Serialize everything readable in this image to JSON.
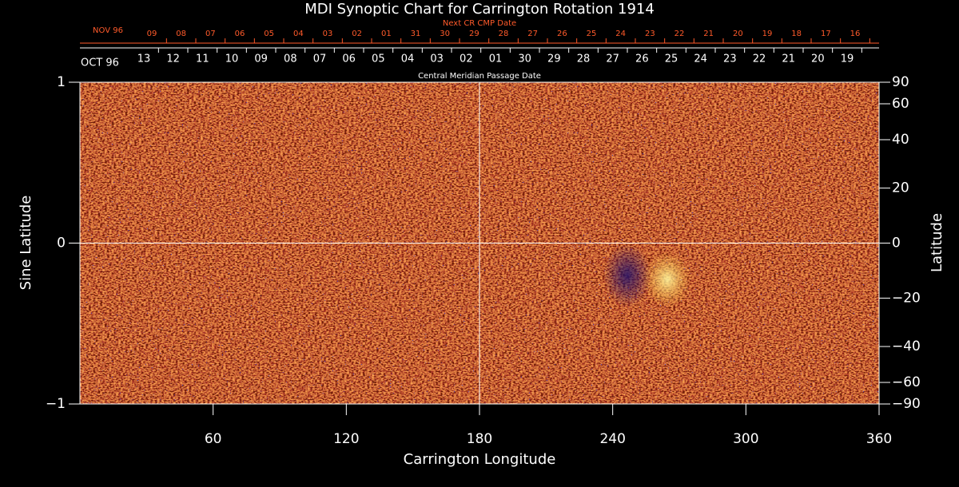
{
  "chart_data": {
    "type": "synoptic-map",
    "title": "MDI Synoptic Chart for Carrington Rotation 1914",
    "xlabel": "Carrington Longitude",
    "ylabel": "Sine Latitude",
    "y2label": "Latitude",
    "xlim": [
      0,
      360
    ],
    "xticks": [
      60,
      120,
      180,
      240,
      300,
      360
    ],
    "ylim": [
      -1,
      1
    ],
    "yticks": [
      {
        "value": -1,
        "label": "−1"
      },
      0,
      1
    ],
    "y2lim": [
      -90,
      90
    ],
    "y2scale": "sine",
    "y2ticks": [
      {
        "value": -90,
        "label": "−90"
      },
      {
        "value": -60,
        "label": "−60"
      },
      {
        "value": -40,
        "label": "−40"
      },
      {
        "value": -20,
        "label": "−20"
      },
      0,
      20,
      40,
      60,
      90
    ],
    "reference_lines": {
      "x": 180,
      "y": 0
    },
    "top_axes": [
      {
        "label": "Next CR CMP Date",
        "color": "#ff5a2a",
        "start": "NOV 96",
        "dates": [
          "09",
          "08",
          "07",
          "06",
          "05",
          "04",
          "03",
          "02",
          "01",
          "31",
          "30",
          "29",
          "28",
          "27",
          "26",
          "25",
          "24",
          "23",
          "22",
          "21",
          "20",
          "19",
          "18",
          "17",
          "16"
        ]
      },
      {
        "label": "Central Meridian Passage Date",
        "color": "#ffffff",
        "start": "OCT 96",
        "dates": [
          "13",
          "12",
          "11",
          "10",
          "09",
          "08",
          "07",
          "06",
          "05",
          "04",
          "03",
          "02",
          "01",
          "30",
          "29",
          "28",
          "27",
          "26",
          "25",
          "24",
          "23",
          "22",
          "21",
          "20",
          "19"
        ]
      }
    ]
  }
}
